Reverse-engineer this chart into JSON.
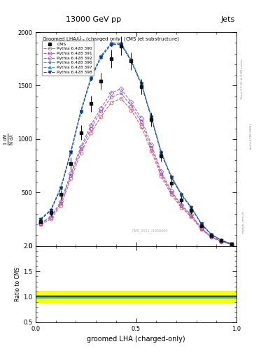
{
  "title_top": "13000 GeV pp",
  "title_right": "Jets",
  "plot_title": "Groomed LHA$\\lambda^{1}_{0.5}$ (charged only) (CMS jet substructure)",
  "xlabel": "groomed LHA (charged-only)",
  "ylabel_main": "$\\frac{1}{\\mathrm{N}} \\frac{\\mathrm{d}N}{\\mathrm{d}p_{\\mathrm{T}} \\mathrm{d}\\lambda}$",
  "ylabel_ratio": "Ratio to CMS",
  "watermark": "CMS_2021_I1930000",
  "rivet_text": "Rivet 3.1.10, ≥ 3.1M events",
  "arxiv_text": "[arXiv:1306.3436]",
  "mcplots_text": "mcplots.cern.ch",
  "x_bins": [
    0.0,
    0.05,
    0.1,
    0.15,
    0.2,
    0.25,
    0.3,
    0.35,
    0.4,
    0.45,
    0.5,
    0.55,
    0.6,
    0.65,
    0.7,
    0.75,
    0.8,
    0.85,
    0.9,
    0.95,
    1.0
  ],
  "cms_values": [
    230,
    310,
    480,
    770,
    1060,
    1330,
    1540,
    1750,
    1870,
    1730,
    1490,
    1180,
    840,
    590,
    430,
    330,
    190,
    95,
    48,
    15
  ],
  "cms_errors": [
    25,
    32,
    44,
    58,
    68,
    78,
    78,
    85,
    88,
    82,
    72,
    65,
    52,
    42,
    33,
    28,
    18,
    13,
    9,
    5
  ],
  "py390_values": [
    200,
    250,
    380,
    630,
    870,
    1060,
    1210,
    1340,
    1380,
    1270,
    1120,
    890,
    650,
    480,
    360,
    270,
    155,
    80,
    40,
    13
  ],
  "py391_values": [
    210,
    265,
    400,
    660,
    905,
    1100,
    1260,
    1390,
    1430,
    1310,
    1160,
    920,
    675,
    500,
    375,
    280,
    162,
    84,
    42,
    14
  ],
  "py392_values": [
    215,
    275,
    415,
    680,
    930,
    1130,
    1290,
    1430,
    1470,
    1345,
    1195,
    950,
    695,
    515,
    385,
    290,
    168,
    87,
    44,
    14
  ],
  "py396_values": [
    255,
    340,
    550,
    890,
    1270,
    1580,
    1780,
    1900,
    1900,
    1745,
    1530,
    1220,
    880,
    655,
    490,
    365,
    210,
    108,
    54,
    18
  ],
  "py397_values": [
    252,
    335,
    545,
    882,
    1262,
    1572,
    1772,
    1892,
    1892,
    1737,
    1522,
    1212,
    872,
    648,
    484,
    360,
    207,
    106,
    53,
    17
  ],
  "py398_values": [
    248,
    330,
    540,
    875,
    1255,
    1565,
    1765,
    1885,
    1885,
    1730,
    1515,
    1205,
    865,
    642,
    478,
    355,
    204,
    104,
    52,
    17
  ],
  "colors": {
    "cms": "#111111",
    "py390": "#cc5555",
    "py391": "#bb44aa",
    "py392": "#8855bb",
    "py396": "#5577bb",
    "py397": "#3399bb",
    "py398": "#113377"
  },
  "markers": {
    "cms": "s",
    "py390": "o",
    "py391": "s",
    "py392": "D",
    "py396": "*",
    "py397": "^",
    "py398": "v"
  },
  "ratio_green_lo": 0.965,
  "ratio_green_hi": 1.035,
  "ratio_yellow_lo": 0.88,
  "ratio_yellow_hi": 1.12,
  "ylim_main": [
    0,
    2000
  ],
  "ylim_ratio": [
    0.5,
    2.0
  ],
  "xlim": [
    0.0,
    1.0
  ]
}
